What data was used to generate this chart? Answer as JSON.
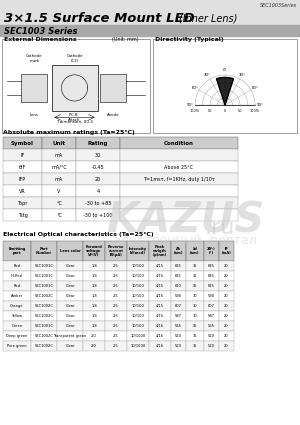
{
  "title": "3×1.5 Surface Mount LED",
  "title_suffix": "(Inner Lens)",
  "series": "SEC1003 Series",
  "series_tag": "SEC1003Series",
  "bg_color": "#ffffff",
  "abs_title": "Absolute maximum ratings (Ta=25°C)",
  "abs_headers": [
    "Symbol",
    "Unit",
    "Rating",
    "Condition"
  ],
  "abs_rows": [
    [
      "IF",
      "mA",
      "30",
      ""
    ],
    [
      "θIF",
      "mA/°C",
      "-0.45",
      "Above 25°C"
    ],
    [
      "IFP",
      "mA",
      "20",
      "T=1msτ, f=1KHz, duty 1/10τ"
    ],
    [
      "VR",
      "V",
      "4",
      ""
    ],
    [
      "Topr",
      "°C",
      "-30 to +85",
      ""
    ],
    [
      "Tstg",
      "°C",
      "-30 to +100",
      ""
    ]
  ],
  "elec_title": "Electrical Optical characteristics (Ta=25°C)",
  "elec_cols": [
    "Emitting\npart",
    "Part\nNumber",
    "Lens color",
    "Forward\nvoltage\nVF(V)",
    "Reverse\ncurrent\nIR(μA)",
    "Intensity\nIV(mcd)",
    "Peak\nwvlgth\nλp(nm)",
    "Δλ\n(nm)",
    "λd\n(nm)",
    "2θ½\n(°)",
    "IF\n(mA)"
  ],
  "elec_col_w": [
    28,
    26,
    26,
    22,
    22,
    22,
    22,
    15,
    18,
    15,
    15
  ],
  "elec_data": [
    [
      "Red",
      "SEC1001C",
      "Clear",
      "1.8",
      "2.5",
      "10/100",
      "4/15",
      "625",
      "35",
      "625",
      "20"
    ],
    [
      "Hi-Red",
      "SEC1001C",
      "Clear",
      "1.8",
      "2.5",
      "10/100",
      "4/15",
      "625",
      "35",
      "625",
      "20"
    ],
    [
      "Red",
      "SEC1001C",
      "Clear",
      "1.8",
      "2.5",
      "10/100",
      "4/15",
      "620",
      "35",
      "625",
      "20"
    ],
    [
      "Amber",
      "SEC1002C",
      "Clear",
      "1.8",
      "2.5",
      "10/100",
      "4/15",
      "590",
      "30",
      "590",
      "20"
    ],
    [
      "Orange",
      "SEC1002C",
      "Clear",
      "1.8",
      "2.5",
      "10/100",
      "4/15",
      "607",
      "30",
      "607",
      "20"
    ],
    [
      "Yellow",
      "SEC1002C",
      "Clear",
      "1.8",
      "2.5",
      "10/100",
      "4/15",
      "587",
      "30",
      "587",
      "20"
    ],
    [
      "Green",
      "SEC1001C",
      "Clear",
      "1.8",
      "2.5",
      "10/100",
      "4/16",
      "565",
      "35",
      "565",
      "20"
    ],
    [
      "Deep green",
      "SEC1002C",
      "Transparent green",
      "2.0",
      "2.5",
      "10/1000",
      "4/16",
      "520",
      "35",
      "520",
      "20"
    ],
    [
      "Pure green",
      "SEC1002C",
      "Clear",
      "2.0",
      "2.5",
      "10/1000",
      "4/16",
      "520",
      "35",
      "520",
      "20"
    ]
  ],
  "watermark_text": "KAZUS",
  "watermark_ru": ".ru",
  "watermark_sub": "электронный  портал"
}
